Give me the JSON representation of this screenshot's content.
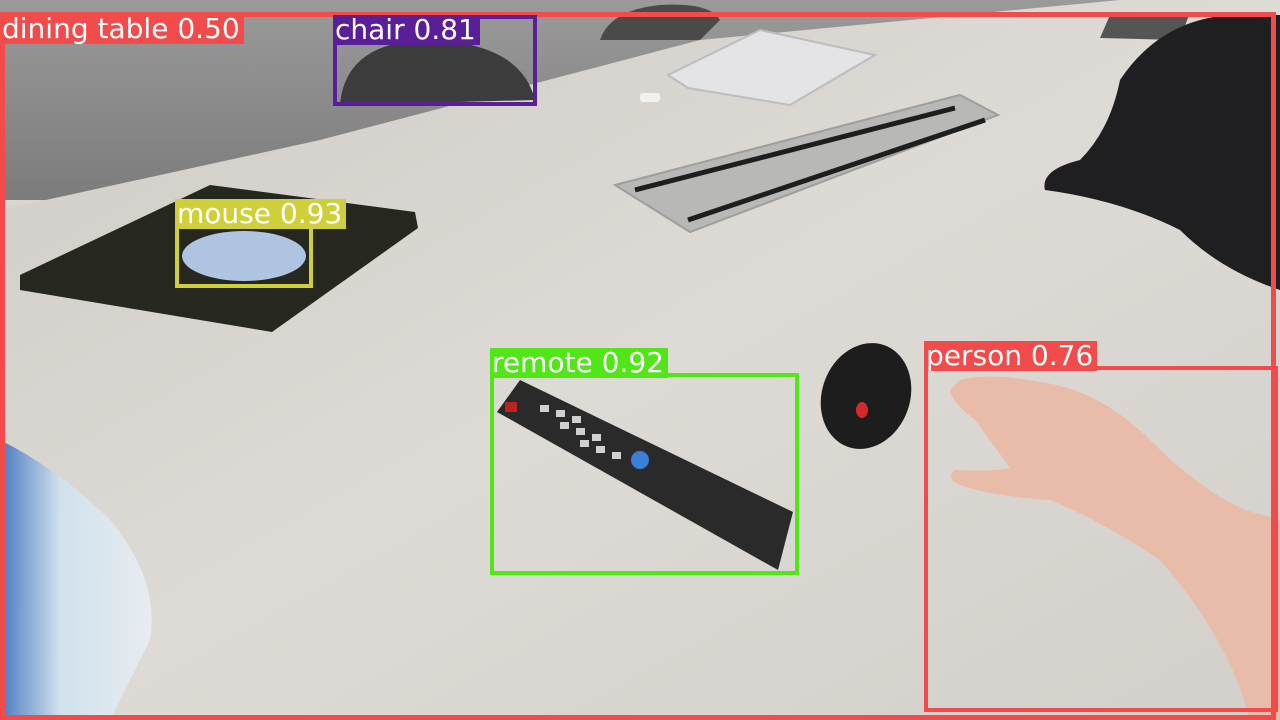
{
  "image": {
    "description_colors": {
      "table": "#d8d4cf",
      "wall": "#8e8e8e",
      "mousepad": "#27291f",
      "remote": "#2b2b2b",
      "skin": "#e6b8a6"
    }
  },
  "detections": [
    {
      "id": "table",
      "label": "dining table",
      "score": "0.50",
      "color": "#f24b4b"
    },
    {
      "id": "chair",
      "label": "chair",
      "score": "0.81",
      "color": "#5a1e96"
    },
    {
      "id": "mouse",
      "label": "mouse",
      "score": "0.93",
      "color": "#cfcf3a"
    },
    {
      "id": "remote",
      "label": "remote",
      "score": "0.92",
      "color": "#52e619"
    },
    {
      "id": "person",
      "label": "person",
      "score": "0.76",
      "color": "#f24b4b"
    }
  ]
}
